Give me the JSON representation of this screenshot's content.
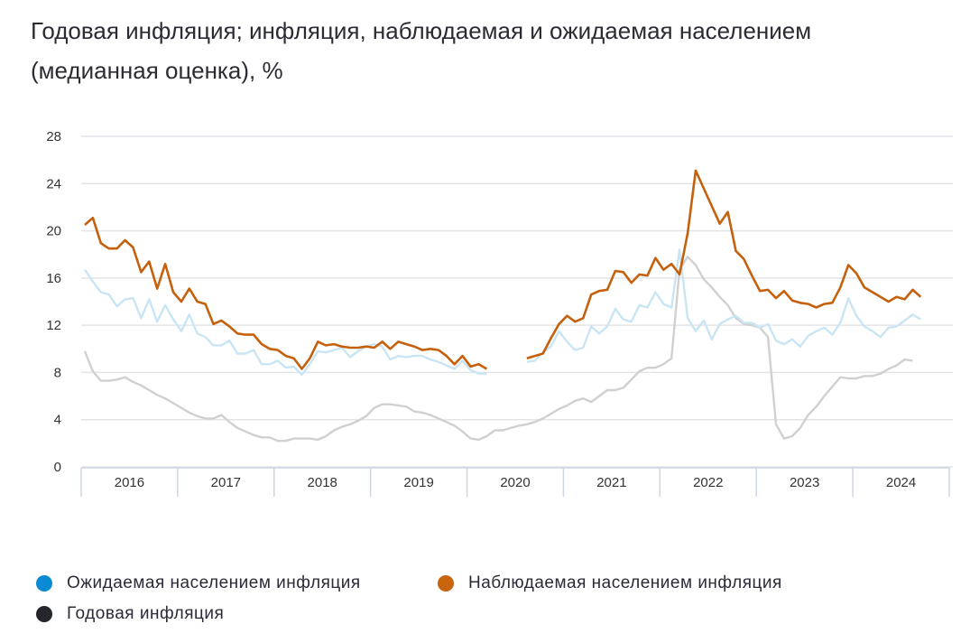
{
  "chart_data": {
    "type": "line",
    "title": "Годовая инфляция; инфляция, наблюдаемая и ожидаемая населением (медианная оценка), %",
    "xlabel": "",
    "ylabel": "",
    "ylim": [
      0,
      28
    ],
    "yticks": [
      0,
      4,
      8,
      12,
      16,
      20,
      24,
      28
    ],
    "grid": true,
    "legend_position": "bottom",
    "x_start": "2016-01",
    "x_end": "2024-09",
    "x_frequency": "monthly",
    "x_tick_labels": [
      "2016",
      "2017",
      "2018",
      "2019",
      "2020",
      "2021",
      "2022",
      "2023",
      "2024"
    ],
    "series": [
      {
        "name": "Ожидаемая населением инфляция",
        "color": "#0a8ad2",
        "line_color": "#c9e5f4",
        "values": [
          16.7,
          15.7,
          14.8,
          14.6,
          13.6,
          14.2,
          14.3,
          12.6,
          14.2,
          12.3,
          13.7,
          12.5,
          11.5,
          12.9,
          11.3,
          11.0,
          10.3,
          10.3,
          10.7,
          9.6,
          9.6,
          9.9,
          8.7,
          8.7,
          9.0,
          8.4,
          8.5,
          7.8,
          8.7,
          9.8,
          9.7,
          9.9,
          10.1,
          9.3,
          9.8,
          10.2,
          10.4,
          10.2,
          9.1,
          9.4,
          9.3,
          9.4,
          9.4,
          9.1,
          8.9,
          8.6,
          8.3,
          9.0,
          8.2,
          7.9,
          7.9,
          null,
          null,
          null,
          null,
          8.9,
          9.0,
          9.7,
          10.2,
          11.5,
          10.6,
          9.9,
          10.1,
          11.9,
          11.3,
          11.9,
          13.4,
          12.5,
          12.3,
          13.7,
          13.5,
          14.8,
          13.8,
          13.5,
          18.4,
          12.6,
          11.5,
          12.4,
          10.8,
          12.1,
          12.5,
          12.8,
          12.2,
          12.2,
          11.8,
          12.1,
          10.7,
          10.4,
          10.8,
          10.2,
          11.1,
          11.5,
          11.8,
          11.2,
          12.2,
          14.3,
          12.8,
          11.9,
          11.5,
          11.0,
          11.8,
          11.9,
          12.4,
          12.9,
          12.5
        ]
      },
      {
        "name": "Наблюдаемая населением инфляция",
        "color": "#c8640e",
        "line_color": "#c5610c",
        "values": [
          20.5,
          21.1,
          18.95,
          18.5,
          18.5,
          19.2,
          18.6,
          16.5,
          17.4,
          15.1,
          17.2,
          14.8,
          14.0,
          15.1,
          14.0,
          13.8,
          12.1,
          12.4,
          11.9,
          11.3,
          11.2,
          11.2,
          10.4,
          10.0,
          9.9,
          9.4,
          9.2,
          8.3,
          9.2,
          10.6,
          10.3,
          10.4,
          10.2,
          10.1,
          10.1,
          10.2,
          10.1,
          10.6,
          10.0,
          10.6,
          10.4,
          10.2,
          9.9,
          10.0,
          9.9,
          9.4,
          8.7,
          9.4,
          8.5,
          8.7,
          8.3,
          null,
          null,
          null,
          null,
          9.2,
          9.4,
          9.6,
          10.9,
          12.1,
          12.8,
          12.3,
          12.6,
          14.6,
          14.9,
          15.0,
          16.6,
          16.5,
          15.6,
          16.3,
          16.2,
          17.7,
          16.7,
          17.2,
          16.3,
          19.8,
          25.1,
          23.6,
          22.1,
          20.6,
          21.6,
          18.3,
          17.6,
          16.2,
          14.9,
          15.0,
          14.3,
          14.9,
          14.1,
          13.9,
          13.8,
          13.5,
          13.8,
          13.9,
          15.2,
          17.1,
          16.4,
          15.2,
          14.8,
          14.4,
          14.0,
          14.4,
          14.2,
          15.0,
          14.4
        ]
      },
      {
        "name": "Годовая инфляция",
        "color": "#25262b",
        "line_color": "#d0d0d0",
        "values": [
          9.8,
          8.1,
          7.3,
          7.3,
          7.4,
          7.6,
          7.2,
          6.9,
          6.5,
          6.1,
          5.8,
          5.4,
          5.0,
          4.6,
          4.3,
          4.1,
          4.1,
          4.4,
          3.8,
          3.3,
          3.0,
          2.7,
          2.5,
          2.5,
          2.2,
          2.2,
          2.4,
          2.4,
          2.4,
          2.3,
          2.6,
          3.1,
          3.4,
          3.6,
          3.9,
          4.3,
          5.0,
          5.3,
          5.3,
          5.2,
          5.1,
          4.7,
          4.6,
          4.4,
          4.1,
          3.8,
          3.5,
          3.0,
          2.4,
          2.3,
          2.6,
          3.1,
          3.1,
          3.3,
          3.5,
          3.6,
          3.8,
          4.1,
          4.5,
          4.9,
          5.2,
          5.6,
          5.8,
          5.5,
          6.0,
          6.5,
          6.5,
          6.7,
          7.4,
          8.1,
          8.4,
          8.4,
          8.7,
          9.2,
          16.7,
          17.8,
          17.1,
          15.9,
          15.2,
          14.4,
          13.7,
          12.6,
          12.1,
          12.0,
          11.8,
          11.0,
          3.6,
          2.4,
          2.6,
          3.3,
          4.4,
          5.1,
          6.0,
          6.8,
          7.6,
          7.5,
          7.5,
          7.7,
          7.7,
          7.9,
          8.3,
          8.6,
          9.1,
          9.0,
          null
        ]
      }
    ]
  }
}
